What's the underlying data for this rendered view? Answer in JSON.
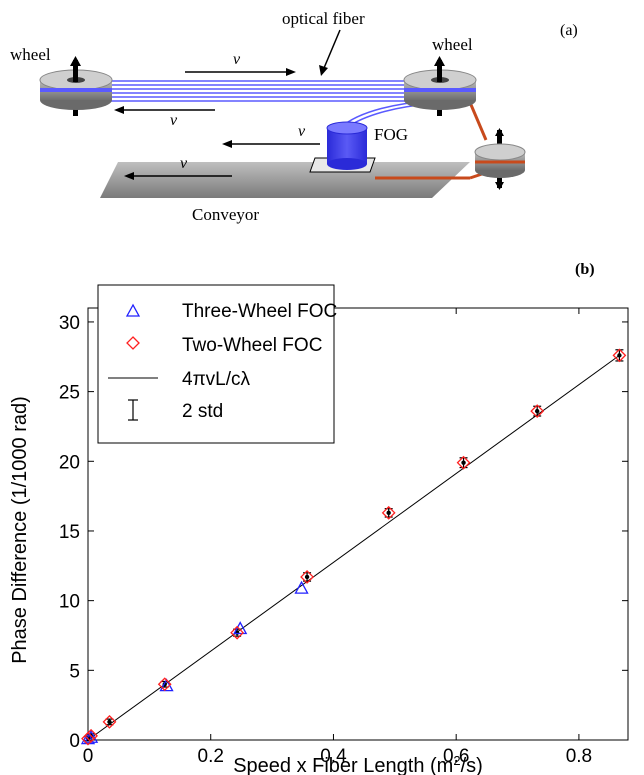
{
  "panel_a": {
    "label": "(a)",
    "wheel_left": "wheel",
    "wheel_right": "wheel",
    "fiber": "optical fiber",
    "velocity": "v",
    "fog": "FOG",
    "conveyor": "Conveyor"
  },
  "panel_b": {
    "label": "(b)"
  },
  "colors": {
    "fiber": "#5a5aff",
    "fog": "#3d3df0",
    "belt": "#c84a1c",
    "three_wheel": "#2020ff",
    "two_wheel": "#ff2020",
    "fit": "#000000"
  },
  "chart_data": {
    "type": "scatter",
    "xlabel": "Speed x Fiber Length (m²/s)",
    "ylabel": "Phase Difference (1/1000 rad)",
    "xlim": [
      0,
      0.88
    ],
    "ylim": [
      0,
      31
    ],
    "xticks": [
      0,
      0.2,
      0.4,
      0.6,
      0.8
    ],
    "xtick_labels": [
      "0",
      "0.2",
      "0.4",
      "0.6",
      "0.8"
    ],
    "yticks": [
      0,
      5,
      10,
      15,
      20,
      25,
      30
    ],
    "ytick_labels": [
      "0",
      "5",
      "10",
      "15",
      "20",
      "25",
      "30"
    ],
    "grid": false,
    "legend_position": "top-left",
    "legend": {
      "three_wheel": "Three-Wheel FOC",
      "two_wheel": "Two-Wheel FOC",
      "fit": "4πvL/cλ",
      "errorbar": "2 std"
    },
    "series": [
      {
        "name": "Three-Wheel FOC",
        "marker": "triangle",
        "x": [
          0.0,
          0.005,
          0.128,
          0.248,
          0.348
        ],
        "y": [
          0.1,
          0.2,
          3.9,
          8.0,
          10.9
        ]
      },
      {
        "name": "Two-Wheel FOC",
        "marker": "diamond",
        "x": [
          0.0,
          0.005,
          0.035,
          0.125,
          0.243,
          0.357,
          0.49,
          0.612,
          0.732,
          0.866
        ],
        "y": [
          0.1,
          0.3,
          1.3,
          4.0,
          7.7,
          11.7,
          16.3,
          19.9,
          23.6,
          27.6
        ],
        "err": [
          0.15,
          0.15,
          0.2,
          0.2,
          0.25,
          0.3,
          0.3,
          0.35,
          0.35,
          0.4
        ]
      },
      {
        "name": "4πvL/cλ",
        "type": "line",
        "x": [
          0,
          0.866
        ],
        "y": [
          0,
          27.6
        ]
      }
    ]
  }
}
